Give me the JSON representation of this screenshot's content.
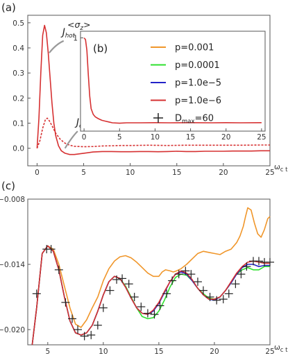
{
  "chart_data": [
    {
      "panel": "(a)",
      "type": "line",
      "xlabel": "ω_c t",
      "xlim": [
        -1,
        25
      ],
      "ylim": [
        -0.07,
        0.53
      ],
      "xticks": [
        0,
        5,
        10,
        15,
        20,
        25
      ],
      "yticks": [
        0.0,
        0.1,
        0.2,
        0.3,
        0.4,
        0.5
      ],
      "ytick_labels": [
        "0.0",
        "0.1",
        "0.2",
        "0.3",
        "0.4",
        "0.5"
      ],
      "annotations": [
        {
          "text": "J",
          "sub": "hot",
          "points_to": [
            1.3,
            0.38
          ]
        },
        {
          "text": "J",
          "sub": "cold",
          "points_to": [
            3.0,
            0.0
          ]
        }
      ],
      "series": [
        {
          "id": "J_hot",
          "style": "solid",
          "x": [
            0,
            0.2,
            0.4,
            0.6,
            0.8,
            1.0,
            1.2,
            1.4,
            1.6,
            1.8,
            2.0,
            2.3,
            2.6,
            3.0,
            3.5,
            4.0,
            5.0,
            6.0,
            7.0,
            8.0,
            9.0,
            10.0,
            11.0,
            12.0,
            13.0,
            14.0,
            15.0,
            16.0,
            17.0,
            18.0,
            19.0,
            20.0,
            21.0,
            22.0,
            23.0,
            24.0,
            25.0
          ],
          "y": [
            0.0,
            0.12,
            0.3,
            0.45,
            0.49,
            0.46,
            0.38,
            0.28,
            0.18,
            0.1,
            0.05,
            0.01,
            -0.01,
            -0.02,
            -0.025,
            -0.025,
            -0.02,
            -0.015,
            -0.013,
            -0.013,
            -0.014,
            -0.014,
            -0.013,
            -0.013,
            -0.014,
            -0.013,
            -0.012,
            -0.013,
            -0.013,
            -0.012,
            -0.012,
            -0.012,
            -0.011,
            -0.011,
            -0.011,
            -0.01,
            -0.01
          ]
        },
        {
          "id": "J_cold",
          "style": "dashed",
          "x": [
            0,
            0.3,
            0.6,
            0.9,
            1.1,
            1.3,
            1.6,
            2.0,
            2.5,
            3.0,
            3.5,
            4.0,
            5.0,
            6.0,
            7.0,
            8.0,
            9.0,
            10.0,
            12.0,
            14.0,
            16.0,
            18.0,
            20.0,
            22.0,
            24.0,
            25.0
          ],
          "y": [
            0.0,
            0.03,
            0.08,
            0.115,
            0.12,
            0.11,
            0.09,
            0.06,
            0.035,
            0.02,
            0.012,
            0.008,
            0.006,
            0.007,
            0.009,
            0.01,
            0.011,
            0.011,
            0.012,
            0.011,
            0.012,
            0.012,
            0.012,
            0.012,
            0.013,
            0.013
          ]
        }
      ],
      "colors": {
        "curve": "#d63031"
      }
    },
    {
      "panel": "(b)",
      "type": "line",
      "ylabel": "<σ_z>",
      "xlim": [
        -0.5,
        25.5
      ],
      "ylim": [
        -0.12,
        1.08
      ],
      "xticks": [
        0,
        5,
        10,
        15,
        20,
        25
      ],
      "yticks": [
        1
      ],
      "x": [
        0,
        0.2,
        0.4,
        0.6,
        0.8,
        1.0,
        1.3,
        1.6,
        2.0,
        2.5,
        3.0,
        3.5,
        4.0,
        5.0,
        6.0,
        8.0,
        10.0,
        12.0,
        15.0,
        18.0,
        20.0,
        22.0,
        25.0
      ],
      "y": [
        1.0,
        0.98,
        0.85,
        0.55,
        0.3,
        0.15,
        0.08,
        0.05,
        0.03,
        0.01,
        0.0,
        -0.01,
        -0.02,
        -0.025,
        -0.02,
        -0.02,
        -0.018,
        -0.02,
        -0.018,
        -0.02,
        -0.018,
        -0.02,
        -0.018
      ],
      "legend": [
        {
          "label": "p=0.001",
          "color": "#f0962a",
          "marker": "line"
        },
        {
          "label": "p=0.0001",
          "color": "#2ee02e",
          "marker": "line"
        },
        {
          "label": "p=1.0e−5",
          "color": "#2323c8",
          "marker": "line"
        },
        {
          "label": "p=1.0e−6",
          "color": "#d63031",
          "marker": "line"
        },
        {
          "label": "D",
          "sub": "max",
          "suffix": "=60",
          "color": "#222222",
          "marker": "cross"
        }
      ],
      "legend_position": "right"
    },
    {
      "panel": "(c)",
      "type": "line",
      "xlabel": "ω_c t",
      "xlim": [
        3.2,
        25
      ],
      "ylim": [
        -0.0214,
        -0.008
      ],
      "xticks": [
        5,
        10,
        15,
        20,
        25
      ],
      "yticks": [
        -0.008,
        -0.014,
        -0.02
      ],
      "ytick_labels": [
        "−0.008",
        "−0.014",
        "−0.020"
      ],
      "series": [
        {
          "name": "p=0.001",
          "color": "#f0962a",
          "x": [
            3.6,
            4.0,
            4.5,
            5.0,
            5.5,
            6.0,
            6.5,
            7.0,
            7.5,
            8.0,
            8.5,
            9.0,
            9.5,
            10.0,
            10.5,
            11.0,
            11.5,
            12.0,
            12.5,
            13.0,
            13.5,
            14.0,
            14.5,
            15.0,
            15.3,
            15.6,
            16.0,
            16.3,
            16.6,
            17.0,
            17.5,
            18.0,
            18.5,
            19.0,
            19.5,
            20.0,
            20.5,
            21.0,
            21.5,
            22.0,
            22.3,
            22.6,
            22.8,
            23.0,
            23.3,
            23.6,
            23.9,
            24.2,
            24.5,
            24.8,
            25.0
          ],
          "y": [
            -0.0214,
            -0.018,
            -0.013,
            -0.0123,
            -0.0126,
            -0.014,
            -0.016,
            -0.018,
            -0.0195,
            -0.0198,
            -0.0191,
            -0.018,
            -0.017,
            -0.0155,
            -0.0144,
            -0.0137,
            -0.0133,
            -0.0132,
            -0.0134,
            -0.0138,
            -0.0143,
            -0.0148,
            -0.0151,
            -0.0151,
            -0.0147,
            -0.0145,
            -0.0146,
            -0.0147,
            -0.0146,
            -0.0144,
            -0.014,
            -0.0135,
            -0.013,
            -0.0128,
            -0.0129,
            -0.013,
            -0.0131,
            -0.0128,
            -0.0126,
            -0.012,
            -0.0114,
            -0.0105,
            -0.0096,
            -0.0088,
            -0.009,
            -0.0102,
            -0.0112,
            -0.0115,
            -0.0108,
            -0.0098,
            -0.0096
          ]
        },
        {
          "name": "p=0.0001",
          "color": "#2ee02e",
          "x": [
            3.6,
            4.0,
            4.5,
            5.0,
            5.5,
            6.0,
            6.5,
            7.0,
            7.5,
            8.0,
            8.5,
            9.0,
            9.5,
            10.0,
            10.5,
            11.0,
            11.5,
            12.0,
            12.5,
            13.0,
            13.5,
            14.0,
            14.5,
            15.0,
            15.5,
            16.0,
            16.5,
            17.0,
            17.5,
            18.0,
            18.5,
            19.0,
            19.5,
            20.0,
            20.5,
            21.0,
            21.5,
            22.0,
            22.5,
            23.0,
            23.5,
            24.0,
            24.5,
            25.0
          ],
          "y": [
            -0.0214,
            -0.018,
            -0.013,
            -0.0123,
            -0.0128,
            -0.0145,
            -0.017,
            -0.0192,
            -0.0203,
            -0.0205,
            -0.0203,
            -0.0196,
            -0.0183,
            -0.0168,
            -0.0156,
            -0.0151,
            -0.0153,
            -0.016,
            -0.017,
            -0.018,
            -0.0188,
            -0.019,
            -0.0189,
            -0.0183,
            -0.0173,
            -0.0161,
            -0.0152,
            -0.0149,
            -0.015,
            -0.0155,
            -0.0162,
            -0.0167,
            -0.0171,
            -0.0172,
            -0.017,
            -0.0164,
            -0.0157,
            -0.0149,
            -0.0145,
            -0.0143,
            -0.0145,
            -0.0145,
            -0.0142,
            -0.0142
          ]
        },
        {
          "name": "p=1.0e−5",
          "color": "#2323c8",
          "x": [
            3.6,
            4.0,
            4.5,
            5.0,
            5.5,
            6.0,
            6.5,
            7.0,
            7.5,
            8.0,
            8.5,
            9.0,
            9.5,
            10.0,
            10.5,
            11.0,
            11.5,
            12.0,
            12.5,
            13.0,
            13.5,
            14.0,
            14.5,
            15.0,
            15.5,
            16.0,
            16.5,
            17.0,
            17.5,
            18.0,
            18.5,
            19.0,
            19.5,
            20.0,
            20.5,
            21.0,
            21.5,
            22.0,
            22.5,
            23.0,
            23.5,
            24.0,
            24.5,
            25.0
          ],
          "y": [
            -0.0214,
            -0.018,
            -0.013,
            -0.0123,
            -0.0128,
            -0.0145,
            -0.017,
            -0.0192,
            -0.0203,
            -0.0205,
            -0.0203,
            -0.0196,
            -0.0183,
            -0.0168,
            -0.0156,
            -0.0151,
            -0.0153,
            -0.0161,
            -0.0171,
            -0.018,
            -0.0185,
            -0.0186,
            -0.0183,
            -0.0176,
            -0.0166,
            -0.0156,
            -0.0149,
            -0.0147,
            -0.0149,
            -0.0155,
            -0.0162,
            -0.0168,
            -0.0172,
            -0.0173,
            -0.017,
            -0.0164,
            -0.0157,
            -0.0149,
            -0.0143,
            -0.014,
            -0.014,
            -0.0142,
            -0.0141,
            -0.0141
          ]
        },
        {
          "name": "p=1.0e−6",
          "color": "#d63031",
          "x": [
            3.6,
            4.0,
            4.5,
            5.0,
            5.5,
            6.0,
            6.5,
            7.0,
            7.5,
            8.0,
            8.5,
            9.0,
            9.5,
            10.0,
            10.5,
            11.0,
            11.5,
            12.0,
            12.5,
            13.0,
            13.5,
            14.0,
            14.5,
            15.0,
            15.5,
            16.0,
            16.5,
            17.0,
            17.5,
            18.0,
            18.5,
            19.0,
            19.5,
            20.0,
            20.5,
            21.0,
            21.5,
            22.0,
            22.5,
            23.0,
            23.5,
            24.0,
            24.5,
            25.0
          ],
          "y": [
            -0.0214,
            -0.018,
            -0.013,
            -0.0123,
            -0.0128,
            -0.0145,
            -0.017,
            -0.0192,
            -0.0203,
            -0.0205,
            -0.0203,
            -0.0196,
            -0.0183,
            -0.0168,
            -0.0156,
            -0.0151,
            -0.0153,
            -0.0161,
            -0.0171,
            -0.018,
            -0.0185,
            -0.0186,
            -0.0182,
            -0.0175,
            -0.0165,
            -0.0156,
            -0.0149,
            -0.0146,
            -0.0148,
            -0.0154,
            -0.0162,
            -0.0168,
            -0.0172,
            -0.0172,
            -0.017,
            -0.0164,
            -0.0156,
            -0.0148,
            -0.0142,
            -0.0138,
            -0.0137,
            -0.0138,
            -0.0139,
            -0.0139
          ]
        },
        {
          "name": "D_max=60",
          "color": "#222222",
          "marker": "cross",
          "x": [
            4.0,
            4.9,
            5.3,
            6.0,
            6.6,
            7.2,
            7.7,
            8.3,
            8.9,
            9.5,
            10.0,
            10.6,
            11.2,
            11.7,
            12.3,
            12.8,
            13.4,
            14.0,
            14.6,
            15.1,
            15.7,
            16.2,
            16.8,
            17.4,
            17.9,
            18.5,
            19.0,
            19.6,
            20.2,
            20.8,
            21.3,
            21.9,
            22.4,
            22.9,
            23.5,
            24.0,
            24.5,
            25.0
          ],
          "y": [
            -0.0167,
            -0.0126,
            -0.0126,
            -0.0145,
            -0.0175,
            -0.019,
            -0.02,
            -0.0206,
            -0.0205,
            -0.0196,
            -0.018,
            -0.0164,
            -0.0154,
            -0.0153,
            -0.0158,
            -0.017,
            -0.0179,
            -0.0185,
            -0.0186,
            -0.0178,
            -0.0167,
            -0.0155,
            -0.0149,
            -0.0146,
            -0.0149,
            -0.0156,
            -0.0164,
            -0.017,
            -0.0173,
            -0.0172,
            -0.0167,
            -0.0158,
            -0.0149,
            -0.0142,
            -0.0137,
            -0.0137,
            -0.0138,
            -0.0138
          ]
        }
      ]
    }
  ]
}
